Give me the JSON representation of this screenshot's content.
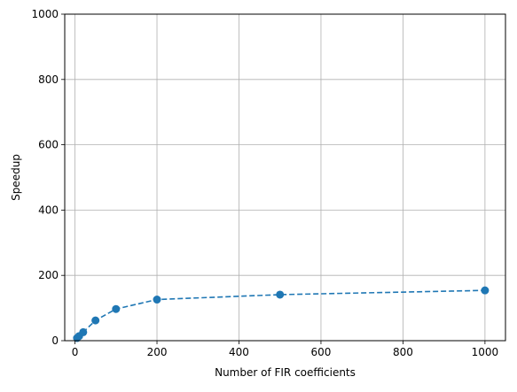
{
  "chart_data": {
    "type": "line",
    "title": "",
    "xlabel": "Number of FIR coefficients",
    "ylabel": "Speedup",
    "xlim": [
      -25,
      1050
    ],
    "ylim": [
      0,
      1000
    ],
    "x_ticks": [
      0,
      200,
      400,
      600,
      800,
      1000
    ],
    "y_ticks": [
      0,
      200,
      400,
      600,
      800,
      1000
    ],
    "x_tick_labels": [
      "0",
      "200",
      "400",
      "600",
      "800",
      "1000"
    ],
    "y_tick_labels": [
      "0",
      "200",
      "400",
      "600",
      "800",
      "1000"
    ],
    "grid": true,
    "legend": "none",
    "series": [
      {
        "color": "#1f77b4",
        "line_style": "dashed",
        "marker": "circle",
        "x": [
          5,
          10,
          20,
          50,
          100,
          200,
          500,
          1000
        ],
        "y": [
          8,
          14,
          26,
          62,
          97,
          126,
          141,
          154
        ]
      }
    ]
  }
}
